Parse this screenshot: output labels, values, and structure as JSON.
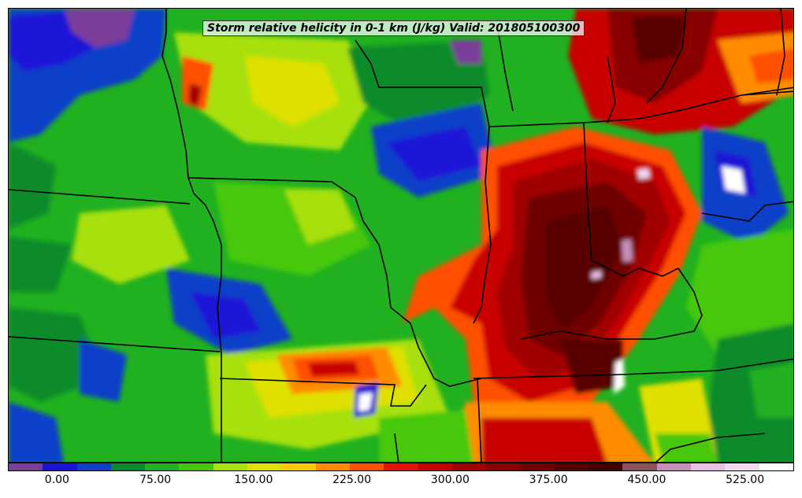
{
  "title": "Storm relative helicity in 0-1 km (J/kg) Valid: 201805100300",
  "colorbar": {
    "colors": [
      "#7a3e9a",
      "#1a14d6",
      "#0f40c8",
      "#0a8a2a",
      "#20b020",
      "#46c810",
      "#a8e010",
      "#e0e000",
      "#ffc800",
      "#ff8c00",
      "#ff5000",
      "#e81000",
      "#c80000",
      "#a00000",
      "#880000",
      "#700000",
      "#580000",
      "#440000",
      "#905060",
      "#c890b8",
      "#e8c0e0",
      "#f0d8f0",
      "#ffffff"
    ],
    "tick_labels": [
      "0.00",
      "75.00",
      "150.00",
      "225.00",
      "300.00",
      "375.00",
      "450.00",
      "525.00"
    ],
    "tick_values": [
      0,
      75,
      150,
      225,
      300,
      375,
      450,
      525
    ],
    "vmin": -37.5,
    "vmax": 562.5
  },
  "map": {
    "field": "storm relative helicity 0-1 km",
    "units": "J/kg",
    "valid_time": "201805100300"
  }
}
